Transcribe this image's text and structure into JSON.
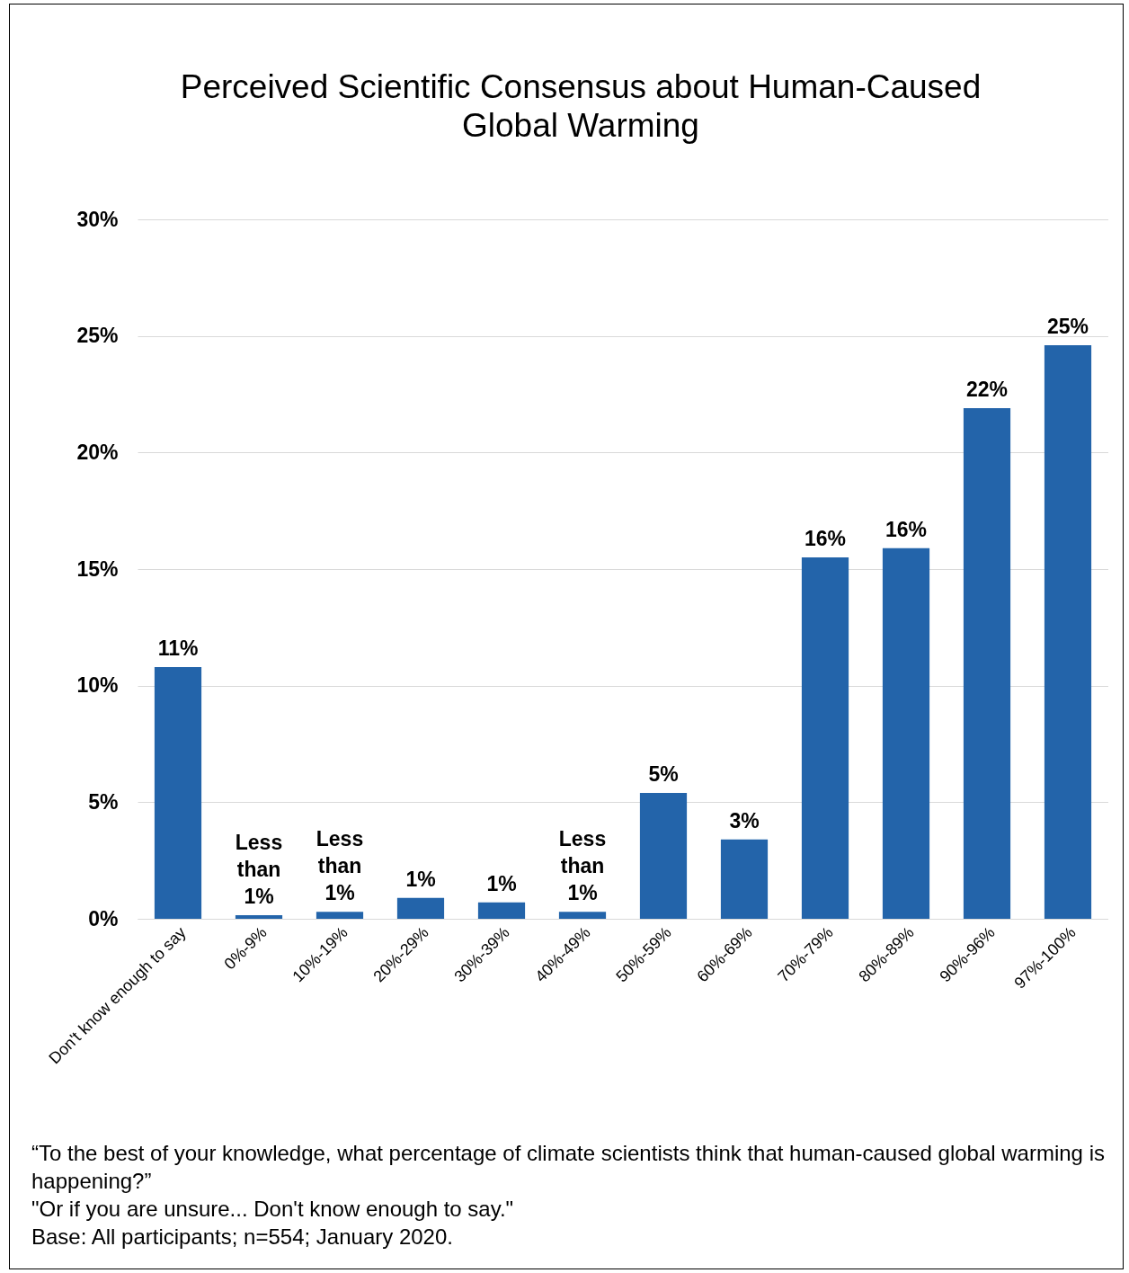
{
  "chart_data": {
    "type": "bar",
    "title": "Perceived Scientific Consensus about Human-Caused Global Warming",
    "categories": [
      "Don't know enough to say",
      "0%-9%",
      "10%-19%",
      "20%-29%",
      "30%-39%",
      "40%-49%",
      "50%-59%",
      "60%-69%",
      "70%-79%",
      "80%-89%",
      "90%-96%",
      "97%-100%"
    ],
    "values": [
      10.8,
      0.15,
      0.3,
      0.9,
      0.7,
      0.3,
      5.4,
      3.4,
      15.5,
      15.9,
      21.9,
      24.6
    ],
    "value_labels": [
      "11%",
      "Less than 1%",
      "Less than 1%",
      "1%",
      "1%",
      "Less than 1%",
      "5%",
      "3%",
      "16%",
      "16%",
      "22%",
      "25%"
    ],
    "color": "#2364aa",
    "ylim": [
      0,
      30
    ],
    "yticks": [
      {
        "value": 0,
        "label": "0%"
      },
      {
        "value": 5,
        "label": "5%"
      },
      {
        "value": 10,
        "label": "10%"
      },
      {
        "value": 15,
        "label": "15%"
      },
      {
        "value": 20,
        "label": "20%"
      },
      {
        "value": 25,
        "label": "25%"
      },
      {
        "value": 30,
        "label": "30%"
      }
    ],
    "grid": "y",
    "annotations": [
      "“To the best of your knowledge, what percentage of climate scientists think that human-caused global warming is happening?”",
      "\"Or if you are unsure... Don't know enough to say.\"",
      "Base: All participants; n=554; January 2020."
    ]
  }
}
